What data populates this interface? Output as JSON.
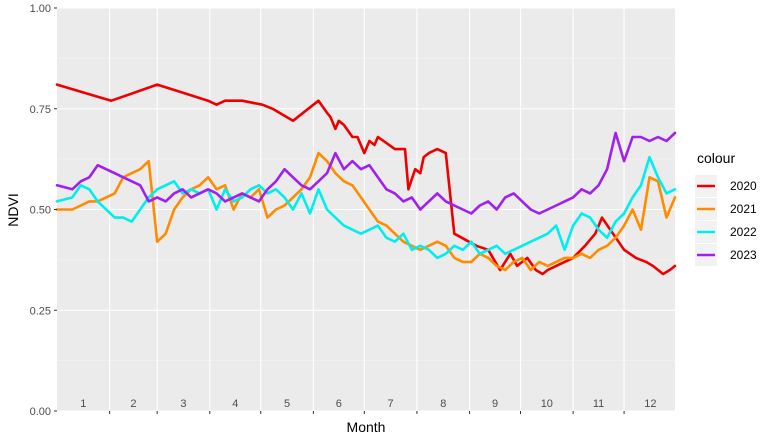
{
  "chart_data": {
    "type": "line",
    "xlabel": "Month",
    "ylabel": "NDVI",
    "xlim": [
      1,
      365
    ],
    "ylim": [
      0,
      1
    ],
    "yticks": [
      "0.00",
      "0.25",
      "0.50",
      "0.75",
      "1.00"
    ],
    "month_labels": [
      "1",
      "2",
      "3",
      "4",
      "5",
      "6",
      "7",
      "8",
      "9",
      "10",
      "11",
      "12"
    ],
    "grid": true,
    "legend_title": "colour",
    "legend_position": "right",
    "series": [
      {
        "name": "2020",
        "color": "#ee0000",
        "x": [
          1,
          25,
          33,
          60,
          75,
          90,
          95,
          100,
          110,
          122,
          128,
          140,
          155,
          160,
          162,
          163,
          165,
          167,
          170,
          175,
          178,
          182,
          185,
          188,
          190,
          200,
          206,
          208,
          212,
          215,
          217,
          220,
          225,
          230,
          235,
          248,
          255,
          262,
          268,
          272,
          278,
          283,
          287,
          290,
          295,
          305,
          312,
          318,
          322,
          335,
          342,
          348,
          352,
          358,
          362,
          365
        ],
        "y": [
          0.81,
          0.78,
          0.77,
          0.81,
          0.79,
          0.77,
          0.76,
          0.77,
          0.77,
          0.76,
          0.75,
          0.72,
          0.77,
          0.74,
          0.73,
          0.72,
          0.7,
          0.72,
          0.71,
          0.68,
          0.68,
          0.64,
          0.67,
          0.66,
          0.68,
          0.65,
          0.65,
          0.55,
          0.6,
          0.59,
          0.63,
          0.64,
          0.65,
          0.64,
          0.44,
          0.41,
          0.4,
          0.35,
          0.39,
          0.36,
          0.38,
          0.35,
          0.34,
          0.35,
          0.36,
          0.38,
          0.41,
          0.44,
          0.48,
          0.4,
          0.38,
          0.37,
          0.36,
          0.34,
          0.35,
          0.36
        ]
      },
      {
        "name": "2021",
        "color": "#ff8c00",
        "x": [
          1,
          10,
          15,
          20,
          25,
          30,
          35,
          40,
          45,
          50,
          55,
          60,
          65,
          70,
          75,
          80,
          85,
          90,
          95,
          100,
          105,
          110,
          115,
          120,
          125,
          130,
          135,
          140,
          145,
          150,
          155,
          160,
          165,
          170,
          175,
          180,
          185,
          190,
          195,
          200,
          205,
          210,
          215,
          220,
          225,
          230,
          235,
          240,
          245,
          250,
          255,
          260,
          265,
          270,
          275,
          280,
          285,
          290,
          295,
          300,
          305,
          310,
          315,
          320,
          325,
          330,
          335,
          340,
          345,
          350,
          355,
          360,
          365
        ],
        "y": [
          0.5,
          0.5,
          0.51,
          0.52,
          0.52,
          0.53,
          0.54,
          0.58,
          0.59,
          0.6,
          0.62,
          0.42,
          0.44,
          0.5,
          0.53,
          0.55,
          0.56,
          0.58,
          0.55,
          0.56,
          0.5,
          0.54,
          0.53,
          0.55,
          0.48,
          0.5,
          0.51,
          0.53,
          0.55,
          0.58,
          0.64,
          0.62,
          0.59,
          0.57,
          0.56,
          0.53,
          0.5,
          0.47,
          0.46,
          0.44,
          0.42,
          0.41,
          0.4,
          0.41,
          0.42,
          0.41,
          0.38,
          0.37,
          0.37,
          0.39,
          0.38,
          0.36,
          0.35,
          0.37,
          0.38,
          0.35,
          0.37,
          0.36,
          0.37,
          0.38,
          0.38,
          0.39,
          0.38,
          0.4,
          0.41,
          0.43,
          0.46,
          0.5,
          0.45,
          0.58,
          0.57,
          0.48,
          0.53
        ]
      },
      {
        "name": "2022",
        "color": "#00eeee",
        "x": [
          1,
          10,
          15,
          20,
          25,
          30,
          35,
          40,
          45,
          50,
          55,
          60,
          65,
          70,
          75,
          80,
          85,
          90,
          95,
          100,
          105,
          110,
          115,
          120,
          125,
          130,
          135,
          140,
          145,
          150,
          155,
          160,
          165,
          170,
          175,
          180,
          185,
          190,
          195,
          200,
          205,
          210,
          215,
          220,
          225,
          230,
          235,
          240,
          245,
          250,
          255,
          260,
          265,
          270,
          275,
          280,
          285,
          290,
          295,
          300,
          305,
          310,
          315,
          320,
          325,
          330,
          335,
          340,
          345,
          350,
          355,
          360,
          365
        ],
        "y": [
          0.52,
          0.53,
          0.56,
          0.55,
          0.52,
          0.5,
          0.48,
          0.48,
          0.47,
          0.5,
          0.53,
          0.55,
          0.56,
          0.57,
          0.54,
          0.55,
          0.54,
          0.55,
          0.5,
          0.55,
          0.52,
          0.53,
          0.55,
          0.56,
          0.54,
          0.55,
          0.53,
          0.5,
          0.54,
          0.49,
          0.55,
          0.5,
          0.48,
          0.46,
          0.45,
          0.44,
          0.45,
          0.46,
          0.43,
          0.42,
          0.44,
          0.4,
          0.41,
          0.4,
          0.38,
          0.39,
          0.41,
          0.4,
          0.42,
          0.39,
          0.4,
          0.41,
          0.39,
          0.4,
          0.41,
          0.42,
          0.43,
          0.44,
          0.46,
          0.4,
          0.46,
          0.49,
          0.48,
          0.45,
          0.43,
          0.47,
          0.49,
          0.53,
          0.56,
          0.63,
          0.58,
          0.54,
          0.55
        ]
      },
      {
        "name": "2023",
        "color": "#a020f0",
        "x": [
          1,
          10,
          15,
          20,
          25,
          30,
          35,
          40,
          45,
          50,
          55,
          60,
          65,
          70,
          75,
          80,
          85,
          90,
          95,
          100,
          105,
          110,
          115,
          120,
          125,
          130,
          135,
          140,
          145,
          150,
          155,
          160,
          165,
          170,
          175,
          180,
          185,
          190,
          195,
          200,
          205,
          210,
          215,
          220,
          225,
          230,
          235,
          240,
          245,
          250,
          255,
          260,
          265,
          270,
          275,
          280,
          285,
          290,
          295,
          300,
          305,
          310,
          315,
          320,
          325,
          330,
          335,
          340,
          345,
          350,
          355,
          360,
          365
        ],
        "y": [
          0.56,
          0.55,
          0.57,
          0.58,
          0.61,
          0.6,
          0.59,
          0.58,
          0.57,
          0.56,
          0.52,
          0.53,
          0.52,
          0.54,
          0.55,
          0.53,
          0.54,
          0.55,
          0.54,
          0.52,
          0.53,
          0.54,
          0.53,
          0.52,
          0.55,
          0.57,
          0.6,
          0.58,
          0.56,
          0.55,
          0.57,
          0.59,
          0.64,
          0.6,
          0.62,
          0.6,
          0.61,
          0.58,
          0.55,
          0.54,
          0.52,
          0.53,
          0.5,
          0.52,
          0.54,
          0.52,
          0.51,
          0.5,
          0.49,
          0.51,
          0.52,
          0.5,
          0.53,
          0.54,
          0.52,
          0.5,
          0.49,
          0.5,
          0.51,
          0.52,
          0.53,
          0.55,
          0.54,
          0.56,
          0.6,
          0.69,
          0.62,
          0.68,
          0.68,
          0.67,
          0.68,
          0.67,
          0.69
        ]
      }
    ]
  }
}
